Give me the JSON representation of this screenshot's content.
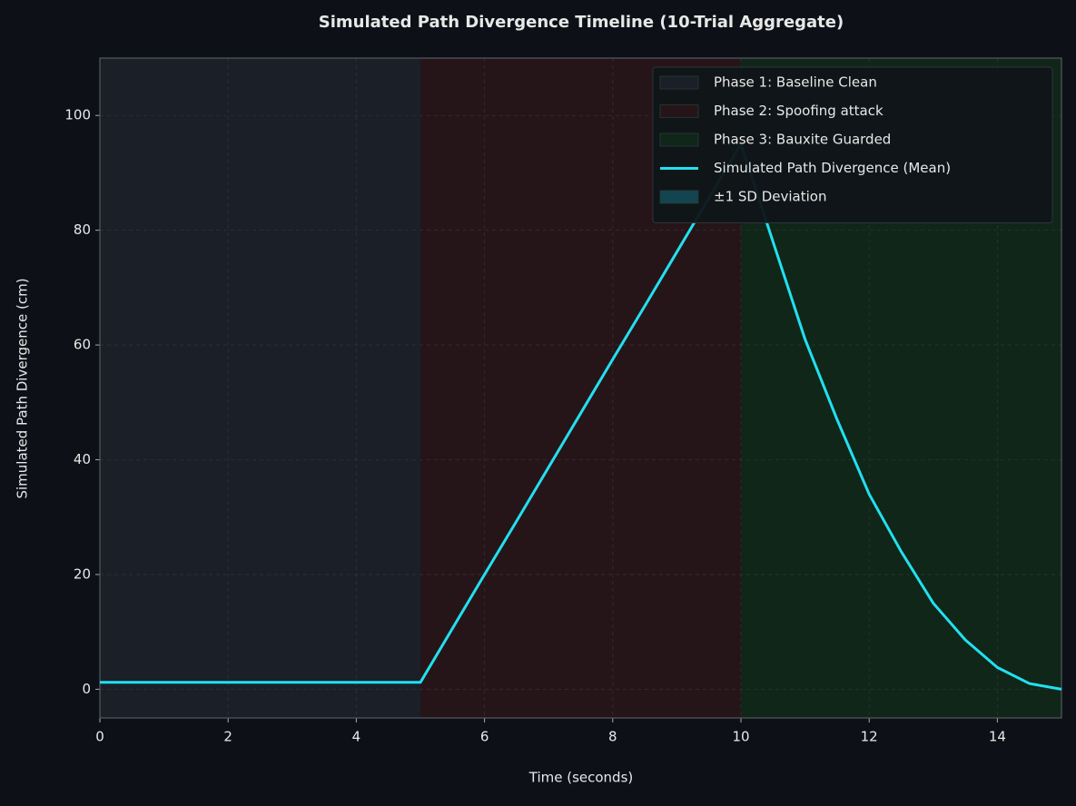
{
  "chart_data": {
    "type": "line",
    "title": "Simulated Path Divergence Timeline (10-Trial Aggregate)",
    "x_label": "Time (seconds)",
    "y_label": "Simulated Path Divergence (cm)",
    "x": [
      0,
      0.5,
      1,
      1.5,
      2,
      2.5,
      3,
      3.5,
      4,
      4.5,
      5,
      5.5,
      6,
      6.5,
      7,
      7.5,
      8,
      8.5,
      9,
      9.5,
      10,
      10.5,
      11,
      11.5,
      12,
      12.5,
      13,
      13.5,
      14,
      14.5,
      15
    ],
    "series": [
      {
        "name": "Simulated Path Divergence (Mean)",
        "color": "#22e0f0",
        "values": [
          1.2,
          1.2,
          1.2,
          1.2,
          1.2,
          1.2,
          1.2,
          1.2,
          1.2,
          1.2,
          1.2,
          10.6,
          20,
          29.3,
          38.7,
          48.1,
          57.5,
          66.8,
          76.2,
          85.6,
          95,
          78,
          61,
          47,
          34,
          24,
          15,
          8.6,
          3.8,
          1,
          0
        ]
      }
    ],
    "phases": [
      {
        "name": "Phase 1: Baseline Clean",
        "color": "#1a1f28",
        "range": [
          0,
          5
        ]
      },
      {
        "name": "Phase 2: Spoofing attack",
        "color": "#261518",
        "range": [
          5,
          10
        ]
      },
      {
        "name": "Phase 3: Bauxite Guarded",
        "color": "#0f2618",
        "range": [
          10,
          15
        ]
      }
    ],
    "band": {
      "name": "±1 SD Deviation",
      "color": "#134550"
    },
    "xlim": [
      0,
      15
    ],
    "ylim": [
      -5,
      110
    ],
    "xticks": [
      0,
      2,
      4,
      6,
      8,
      10,
      12,
      14
    ],
    "yticks": [
      0,
      20,
      40,
      60,
      80,
      100
    ],
    "grid": true,
    "legend": "upper right"
  }
}
